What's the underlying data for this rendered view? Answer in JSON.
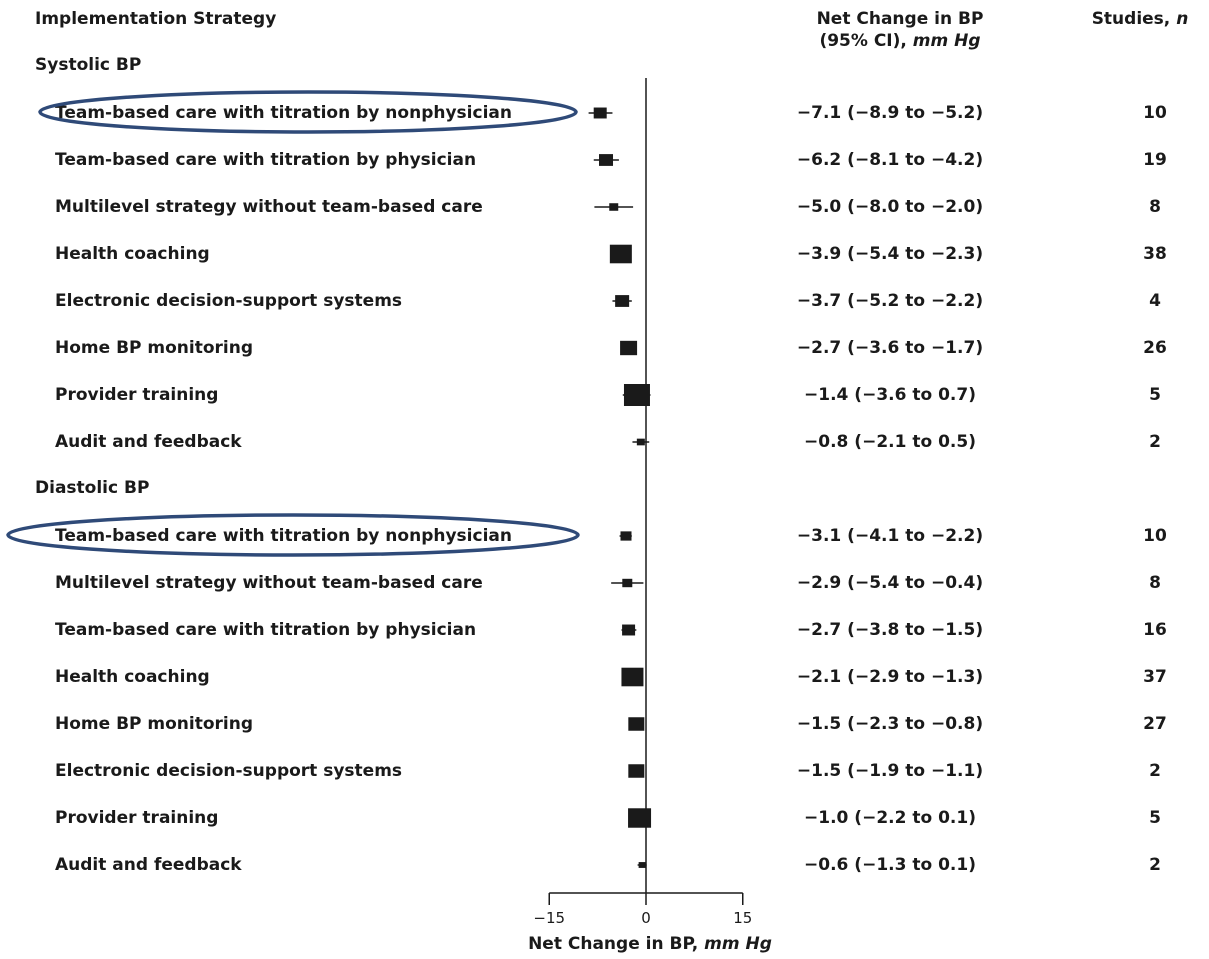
{
  "header": {
    "strategy": "Implementation Strategy",
    "change_line1": "Net Change in BP",
    "change_line2_a": "(95% CI), ",
    "change_line2_b": "mm Hg",
    "studies_a": "Studies, ",
    "studies_b": "n"
  },
  "colors": {
    "marker": "#1a1a1a",
    "highlight": "#2f4a78"
  },
  "chart_data": {
    "type": "forest",
    "xlabel_a": "Net Change in BP, ",
    "xlabel_b": "mm Hg",
    "xlim": [
      -15,
      15
    ],
    "ticks": [
      -15,
      0,
      15
    ],
    "tick_labels": [
      "−15",
      "0",
      "15"
    ],
    "groups": [
      {
        "name": "Systolic BP",
        "rows": [
          {
            "label": "Team-based care with titration by nonphysician",
            "est": -7.1,
            "lo": -8.9,
            "hi": -5.2,
            "ci_text": "−7.1 (−8.9 to −5.2)",
            "n": "10",
            "weight": 0.35,
            "highlight": true
          },
          {
            "label": "Team-based care with titration by physician",
            "est": -6.2,
            "lo": -8.1,
            "hi": -4.2,
            "ci_text": "−6.2 (−8.1 to −4.2)",
            "n": "19",
            "weight": 0.4,
            "highlight": false
          },
          {
            "label": "Multilevel strategy without team-based care",
            "est": -5.0,
            "lo": -8.0,
            "hi": -2.0,
            "ci_text": "−5.0 (−8.0 to −2.0)",
            "n": "8",
            "weight": 0.15,
            "highlight": false
          },
          {
            "label": "Health coaching",
            "est": -3.9,
            "lo": -5.4,
            "hi": -2.3,
            "ci_text": "−3.9 (−5.4 to −2.3)",
            "n": "38",
            "weight": 0.8,
            "highlight": false
          },
          {
            "label": "Electronic decision-support systems",
            "est": -3.7,
            "lo": -5.2,
            "hi": -2.2,
            "ci_text": "−3.7 (−5.2 to −2.2)",
            "n": "4",
            "weight": 0.4,
            "highlight": false
          },
          {
            "label": "Home BP monitoring",
            "est": -2.7,
            "lo": -3.6,
            "hi": -1.7,
            "ci_text": "−2.7 (−3.6 to −1.7)",
            "n": "26",
            "weight": 0.55,
            "highlight": false
          },
          {
            "label": "Provider training",
            "est": -1.4,
            "lo": -3.6,
            "hi": 0.7,
            "ci_text": "−1.4 (−3.6 to 0.7)",
            "n": "5",
            "weight": 1.0,
            "highlight": false
          },
          {
            "label": "Audit and feedback",
            "est": -0.8,
            "lo": -2.1,
            "hi": 0.5,
            "ci_text": "−0.8 (−2.1 to 0.5)",
            "n": "2",
            "weight": 0.1,
            "highlight": false
          }
        ]
      },
      {
        "name": "Diastolic BP",
        "rows": [
          {
            "label": "Team-based care with titration by nonphysician",
            "est": -3.1,
            "lo": -4.1,
            "hi": -2.2,
            "ci_text": "−3.1 (−4.1 to −2.2)",
            "n": "10",
            "weight": 0.25,
            "highlight": true
          },
          {
            "label": "Multilevel strategy without team-based care",
            "est": -2.9,
            "lo": -5.4,
            "hi": -0.4,
            "ci_text": "−2.9 (−5.4 to −0.4)",
            "n": "8",
            "weight": 0.2,
            "highlight": false
          },
          {
            "label": "Team-based care with titration by physician",
            "est": -2.7,
            "lo": -3.8,
            "hi": -1.5,
            "ci_text": "−2.7 (−3.8 to −1.5)",
            "n": "16",
            "weight": 0.35,
            "highlight": false
          },
          {
            "label": "Health coaching",
            "est": -2.1,
            "lo": -2.9,
            "hi": -1.3,
            "ci_text": "−2.1 (−2.9 to −1.3)",
            "n": "37",
            "weight": 0.8,
            "highlight": false
          },
          {
            "label": "Home BP monitoring",
            "est": -1.5,
            "lo": -2.3,
            "hi": -0.8,
            "ci_text": "−1.5 (−2.3 to −0.8)",
            "n": "27",
            "weight": 0.5,
            "highlight": false
          },
          {
            "label": "Electronic decision-support systems",
            "est": -1.5,
            "lo": -1.9,
            "hi": -1.1,
            "ci_text": "−1.5 (−1.9 to −1.1)",
            "n": "2",
            "weight": 0.5,
            "highlight": false
          },
          {
            "label": "Provider training",
            "est": -1.0,
            "lo": -2.2,
            "hi": 0.1,
            "ci_text": "−1.0 (−2.2 to 0.1)",
            "n": "5",
            "weight": 0.85,
            "highlight": false
          },
          {
            "label": "Audit and feedback",
            "est": -0.6,
            "lo": -1.3,
            "hi": 0.1,
            "ci_text": "−0.6 (−1.3 to 0.1)",
            "n": "2",
            "weight": 0.05,
            "highlight": false
          }
        ]
      }
    ]
  }
}
